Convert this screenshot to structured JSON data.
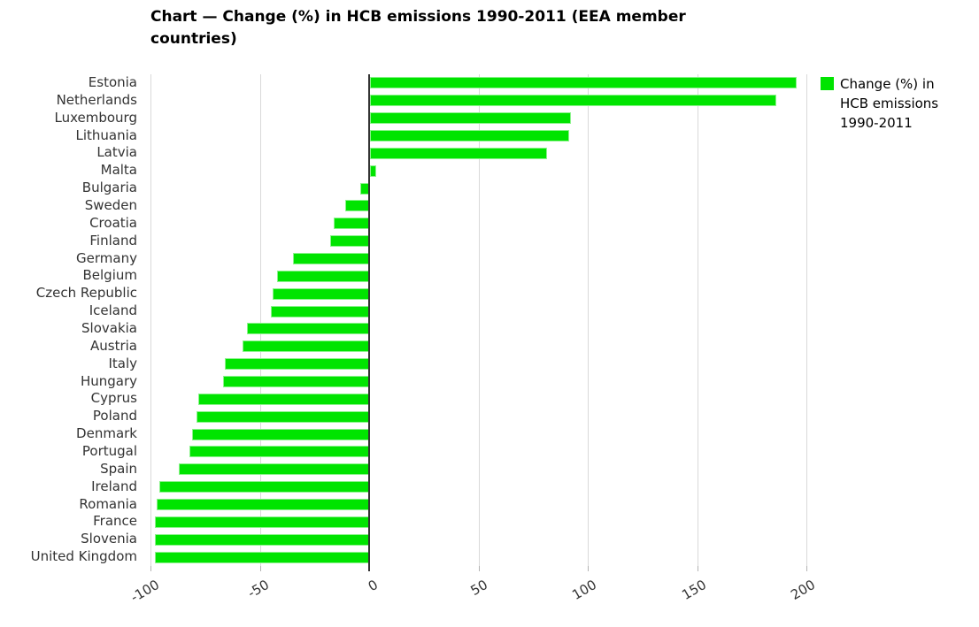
{
  "title": "Chart — Change (%) in HCB emissions 1990-2011 (EEA member countries)",
  "legend": {
    "label": "Change (%) in HCB emissions 1990-2011"
  },
  "colors": {
    "bar": "#00e400",
    "gridline": "#d9d9d9",
    "zero_axis": "#333333",
    "text": "#333333"
  },
  "chart_data": {
    "type": "bar",
    "orientation": "horizontal",
    "title": "Chart — Change (%) in HCB emissions 1990-2011 (EEA member countries)",
    "series_name": "Change (%) in HCB emissions 1990-2011",
    "categories": [
      "Estonia",
      "Netherlands",
      "Luxembourg",
      "Lithuania",
      "Latvia",
      "Malta",
      "Bulgaria",
      "Sweden",
      "Croatia",
      "Finland",
      "Germany",
      "Belgium",
      "Czech Republic",
      "Iceland",
      "Slovakia",
      "Austria",
      "Italy",
      "Hungary",
      "Cyprus",
      "Poland",
      "Denmark",
      "Portugal",
      "Spain",
      "Ireland",
      "Romania",
      "France",
      "Slovenia",
      "United Kingdom"
    ],
    "values": [
      195,
      186,
      92,
      91,
      81,
      3,
      -4,
      -11,
      -16,
      -18,
      -35,
      -42,
      -44,
      -45,
      -56,
      -58,
      -66,
      -67,
      -78,
      -79,
      -81,
      -82,
      -87,
      -96,
      -97,
      -98,
      -98,
      -98
    ],
    "xlabel": "",
    "ylabel": "",
    "xlim": [
      -100,
      200
    ],
    "x_ticks": [
      -100,
      -50,
      0,
      50,
      100,
      150,
      200
    ],
    "grid": true,
    "legend_position": "top-right",
    "bar_color": "#00e400"
  }
}
